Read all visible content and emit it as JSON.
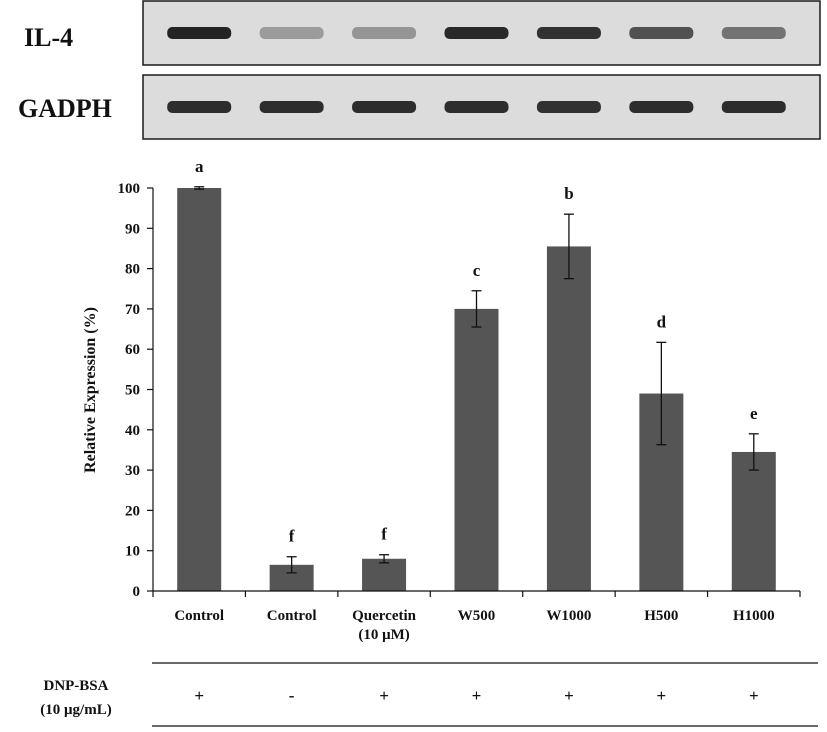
{
  "blots": {
    "rows": [
      {
        "label": "IL-4",
        "bands": [
          0.95,
          0.35,
          0.38,
          0.92,
          0.88,
          0.72,
          0.55
        ]
      },
      {
        "label": "GADPH",
        "bands": [
          0.9,
          0.9,
          0.9,
          0.9,
          0.88,
          0.9,
          0.9
        ]
      }
    ]
  },
  "chart_data": {
    "type": "bar",
    "categories": [
      "Control",
      "Control",
      "Quercetin\n(10 μM)",
      "W500",
      "W1000",
      "H500",
      "H1000"
    ],
    "values": [
      100,
      6.5,
      8,
      70,
      85.5,
      49,
      34.5
    ],
    "errors": [
      0.3,
      2,
      1,
      4.5,
      8,
      12.7,
      4.5
    ],
    "significance": [
      "a",
      "f",
      "f",
      "c",
      "b",
      "d",
      "e"
    ],
    "xlabel": "",
    "ylabel": "Relative Expression (%)",
    "ylim": [
      0,
      100
    ],
    "yticks": [
      0,
      10,
      20,
      30,
      40,
      50,
      60,
      70,
      80,
      90,
      100
    ],
    "bar_color": "#555555",
    "grid": false
  },
  "treatment": {
    "label_line1": "DNP-BSA",
    "label_line2": "(10 μg/mL)",
    "signs": [
      "+",
      "-",
      "+",
      "+",
      "+",
      "+",
      "+"
    ]
  }
}
